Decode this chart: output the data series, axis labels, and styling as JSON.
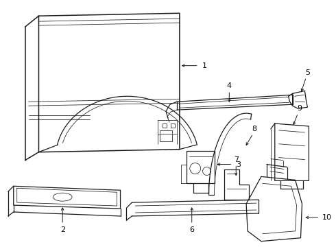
{
  "bg_color": "#ffffff",
  "line_color": "#1a1a1a",
  "arrow_color": "#1a1a1a",
  "label_color": "#000000",
  "lw_main": 0.9,
  "lw_thin": 0.55,
  "lw_thick": 1.1,
  "fs": 8.0
}
